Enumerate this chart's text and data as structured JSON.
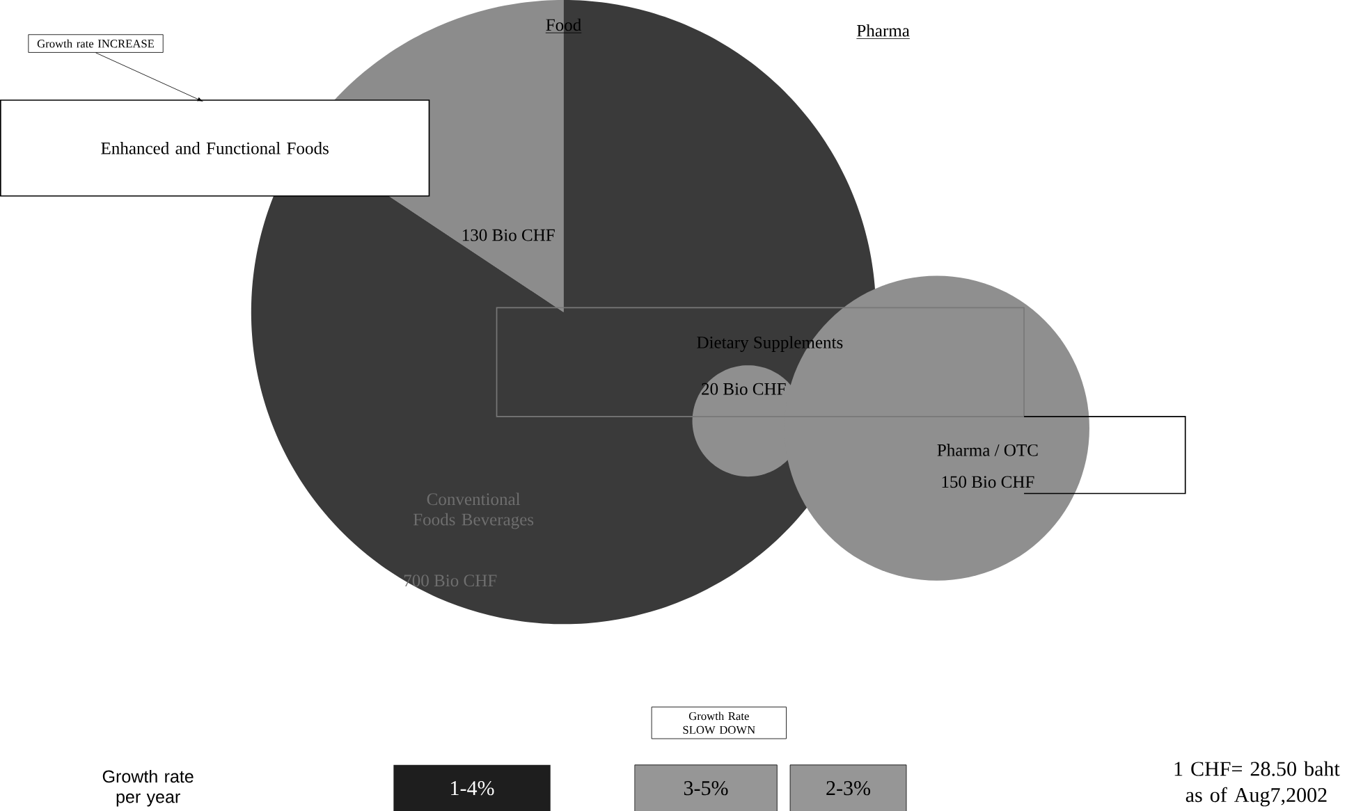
{
  "chart_data": [
    {
      "type": "pie",
      "title": "Food",
      "categories": [
        "Enhanced and Functional Foods",
        "Conventional Foods Beverages"
      ],
      "values": [
        130,
        700
      ],
      "colors": [
        "#8c8c8c",
        "#3a3a3a"
      ],
      "value_labels": [
        "130 Bio CHF",
        "700 Bio CHF"
      ],
      "annotations": [
        "Growth rate INCREASE",
        "Growth Rate SLOW DOWN",
        "Growth rate per year",
        "1-4%",
        "3-5%",
        "2-3%",
        "1 CHF= 28.50 baht as of Aug7,2002"
      ]
    },
    {
      "type": "other",
      "title": "Pharma",
      "categories": [
        "Dietary Supplements",
        "Pharma / OTC"
      ],
      "values": [
        20,
        150
      ],
      "colors": [
        "#8f8f8f",
        "#8f8f8f"
      ],
      "value_labels": [
        "20 Bio CHF",
        "150 Bio CHF"
      ]
    }
  ]
}
